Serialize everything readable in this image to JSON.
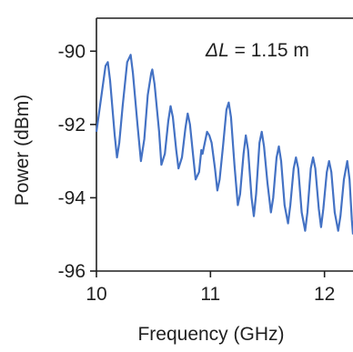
{
  "chart_data": {
    "type": "line",
    "title": "",
    "xlabel": "Frequency (GHz)",
    "ylabel": "Power (dBm)",
    "xlim": [
      10,
      12.25
    ],
    "ylim": [
      -96,
      -89.1
    ],
    "x_ticks": [
      {
        "value": 10,
        "label": "10"
      },
      {
        "value": 11,
        "label": "11"
      },
      {
        "value": 12,
        "label": "12"
      }
    ],
    "y_ticks": [
      {
        "value": -90,
        "label": "-90"
      },
      {
        "value": -92,
        "label": "-92"
      },
      {
        "value": -94,
        "label": "-94"
      },
      {
        "value": -96,
        "label": "-96"
      }
    ],
    "grid": false,
    "legend": "none",
    "annotation": {
      "symbol": "ΔL",
      "text": " = 1.15 m"
    },
    "series": [
      {
        "color": "#4472c4",
        "points": [
          [
            10.0,
            -92.2
          ],
          [
            10.04,
            -91.3
          ],
          [
            10.08,
            -90.4
          ],
          [
            10.1,
            -90.3
          ],
          [
            10.12,
            -90.8
          ],
          [
            10.16,
            -92.3
          ],
          [
            10.18,
            -92.9
          ],
          [
            10.2,
            -92.5
          ],
          [
            10.23,
            -91.5
          ],
          [
            10.27,
            -90.3
          ],
          [
            10.3,
            -90.1
          ],
          [
            10.32,
            -90.6
          ],
          [
            10.36,
            -92.0
          ],
          [
            10.39,
            -93.0
          ],
          [
            10.42,
            -92.4
          ],
          [
            10.45,
            -91.2
          ],
          [
            10.48,
            -90.6
          ],
          [
            10.49,
            -90.5
          ],
          [
            10.51,
            -90.9
          ],
          [
            10.55,
            -92.2
          ],
          [
            10.57,
            -93.1
          ],
          [
            10.6,
            -92.8
          ],
          [
            10.63,
            -91.9
          ],
          [
            10.65,
            -91.5
          ],
          [
            10.67,
            -91.8
          ],
          [
            10.7,
            -92.7
          ],
          [
            10.72,
            -93.2
          ],
          [
            10.75,
            -92.9
          ],
          [
            10.78,
            -92.1
          ],
          [
            10.8,
            -91.7
          ],
          [
            10.82,
            -92.0
          ],
          [
            10.85,
            -92.9
          ],
          [
            10.87,
            -93.5
          ],
          [
            10.9,
            -93.3
          ],
          [
            10.92,
            -92.7
          ],
          [
            10.93,
            -92.8
          ],
          [
            10.95,
            -92.5
          ],
          [
            10.97,
            -92.2
          ],
          [
            10.99,
            -92.3
          ],
          [
            11.01,
            -92.5
          ],
          [
            11.04,
            -93.2
          ],
          [
            11.06,
            -93.8
          ],
          [
            11.08,
            -93.5
          ],
          [
            11.11,
            -92.6
          ],
          [
            11.14,
            -91.6
          ],
          [
            11.16,
            -91.4
          ],
          [
            11.18,
            -91.8
          ],
          [
            11.21,
            -93.1
          ],
          [
            11.24,
            -94.2
          ],
          [
            11.26,
            -93.9
          ],
          [
            11.29,
            -92.8
          ],
          [
            11.31,
            -92.3
          ],
          [
            11.33,
            -92.7
          ],
          [
            11.36,
            -94.0
          ],
          [
            11.38,
            -94.5
          ],
          [
            11.4,
            -93.9
          ],
          [
            11.43,
            -92.5
          ],
          [
            11.45,
            -92.2
          ],
          [
            11.47,
            -92.6
          ],
          [
            11.5,
            -93.6
          ],
          [
            11.53,
            -94.4
          ],
          [
            11.55,
            -94.0
          ],
          [
            11.58,
            -92.9
          ],
          [
            11.6,
            -92.6
          ],
          [
            11.62,
            -93.0
          ],
          [
            11.65,
            -94.2
          ],
          [
            11.68,
            -94.7
          ],
          [
            11.7,
            -94.2
          ],
          [
            11.73,
            -93.2
          ],
          [
            11.75,
            -92.9
          ],
          [
            11.77,
            -93.2
          ],
          [
            11.8,
            -94.4
          ],
          [
            11.83,
            -94.9
          ],
          [
            11.85,
            -94.4
          ],
          [
            11.88,
            -93.2
          ],
          [
            11.9,
            -92.9
          ],
          [
            11.92,
            -93.2
          ],
          [
            11.95,
            -94.3
          ],
          [
            11.97,
            -94.8
          ],
          [
            11.99,
            -94.3
          ],
          [
            12.02,
            -93.3
          ],
          [
            12.04,
            -93.0
          ],
          [
            12.06,
            -93.3
          ],
          [
            12.09,
            -94.4
          ],
          [
            12.12,
            -94.9
          ],
          [
            12.14,
            -94.5
          ],
          [
            12.17,
            -93.5
          ],
          [
            12.2,
            -93.0
          ],
          [
            12.22,
            -93.5
          ],
          [
            12.24,
            -94.6
          ],
          [
            12.25,
            -95.0
          ]
        ]
      }
    ]
  }
}
